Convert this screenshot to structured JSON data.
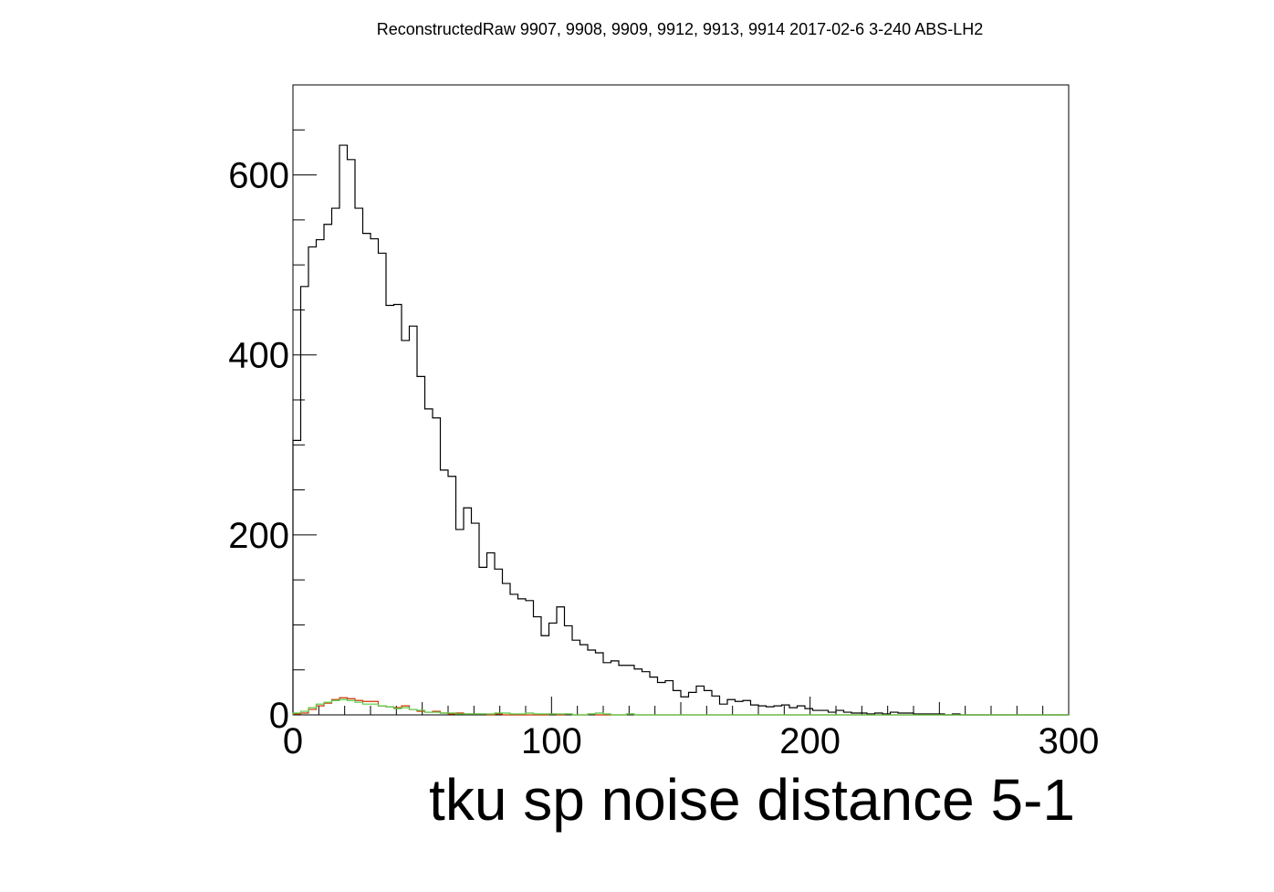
{
  "chart_data": {
    "type": "histogram",
    "title": "ReconstructedRaw 9907, 9908, 9909, 9912, 9913, 9914 2017-02-6 3-240 ABS-LH2",
    "xlabel": "tku sp noise distance 5-1",
    "ylabel": "",
    "xlim": [
      0,
      300
    ],
    "ylim": [
      0,
      700
    ],
    "x_ticks": [
      0,
      100,
      200,
      300
    ],
    "y_ticks": [
      0,
      200,
      400,
      600
    ],
    "x_tick_labels": [
      "0",
      "100",
      "200",
      "300"
    ],
    "y_tick_labels": [
      "0",
      "200",
      "400",
      "600"
    ],
    "bin_width": 3,
    "grid": false,
    "series": [
      {
        "color": "#000000",
        "values": [
          305,
          476,
          520,
          528,
          545,
          563,
          633,
          617,
          563,
          535,
          529,
          513,
          455,
          456,
          416,
          432,
          376,
          340,
          330,
          272,
          265,
          206,
          230,
          213,
          164,
          180,
          162,
          146,
          134,
          129,
          127,
          109,
          88,
          102,
          120,
          99,
          83,
          78,
          72,
          69,
          58,
          60,
          55,
          55,
          51,
          48,
          42,
          36,
          38,
          27,
          20,
          25,
          32,
          27,
          21,
          12,
          17,
          15,
          16,
          11,
          10,
          9,
          10,
          11,
          8,
          10,
          7,
          5,
          5,
          3,
          5,
          3,
          2,
          2,
          1,
          2,
          1,
          3,
          2,
          2,
          1,
          1,
          1,
          1,
          0,
          1,
          0,
          0,
          0,
          0,
          0,
          0,
          0,
          0,
          0,
          0,
          0,
          0,
          0,
          0
        ]
      },
      {
        "color": "#cc3300",
        "values": [
          1,
          2,
          6,
          10,
          13,
          17,
          19,
          18,
          16,
          15,
          15,
          10,
          9,
          8,
          10,
          6,
          4,
          3,
          4,
          2,
          1,
          2,
          1,
          1,
          1,
          0,
          1,
          0,
          0,
          0,
          0,
          0,
          0,
          1,
          0,
          1,
          0,
          0,
          1,
          0,
          0,
          0,
          0,
          1,
          0,
          0,
          0,
          0,
          0,
          0,
          0,
          0,
          0,
          0,
          0,
          0,
          0,
          0,
          0,
          0,
          0,
          0,
          0,
          0,
          0,
          0,
          0,
          0,
          0,
          0,
          0,
          0,
          0,
          0,
          0,
          0,
          0,
          0,
          0,
          0,
          0,
          0,
          0,
          0,
          0,
          0,
          0,
          0,
          0,
          0,
          0,
          0,
          0,
          0,
          0,
          0,
          0,
          0,
          0,
          0
        ]
      },
      {
        "color": "#55cc44",
        "values": [
          2,
          4,
          8,
          12,
          14,
          16,
          17,
          16,
          14,
          12,
          12,
          10,
          9,
          7,
          8,
          6,
          5,
          3,
          3,
          2,
          2,
          1,
          1,
          1,
          1,
          1,
          2,
          2,
          1,
          1,
          2,
          1,
          1,
          1,
          1,
          1,
          0,
          0,
          1,
          2,
          1,
          0,
          0,
          1,
          0,
          0,
          0,
          0,
          0,
          0,
          0,
          0,
          0,
          0,
          0,
          0,
          0,
          0,
          0,
          0,
          0,
          0,
          0,
          0,
          0,
          0,
          0,
          0,
          0,
          0,
          0,
          0,
          0,
          0,
          0,
          0,
          0,
          0,
          0,
          0,
          0,
          0,
          0,
          0,
          0,
          0,
          0,
          0,
          0,
          0,
          0,
          0,
          0,
          0,
          0,
          0,
          0,
          0,
          0,
          0
        ]
      }
    ]
  }
}
